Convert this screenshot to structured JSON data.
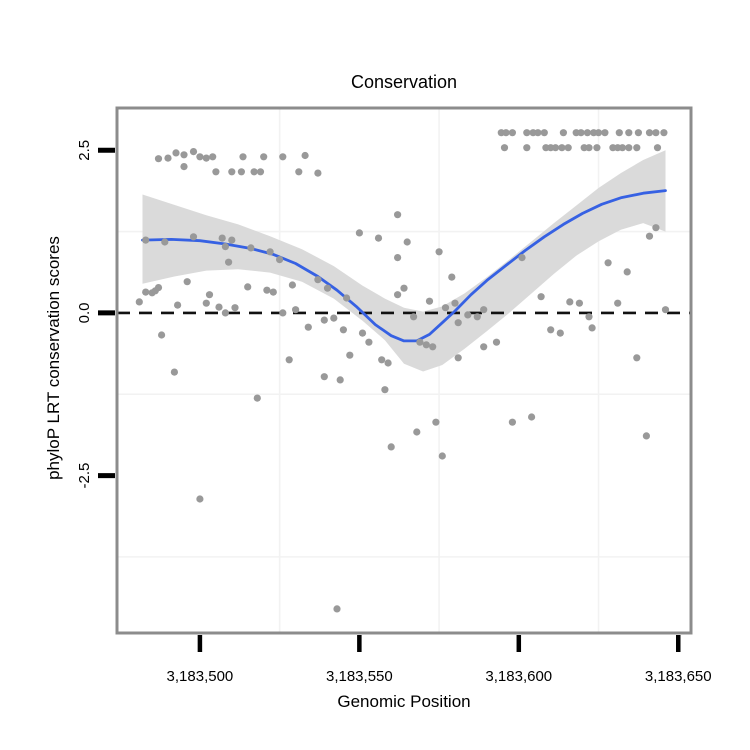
{
  "chart_data": {
    "type": "scatter",
    "title": "Conservation",
    "xlabel": "Genomic Position",
    "ylabel": "phyloP LRT conservation scores",
    "x_domain": [
      3183474,
      3183654
    ],
    "y_domain": [
      -4.92,
      3.15
    ],
    "x_ticks": [
      {
        "pos": 3183500,
        "label": "3,183,500"
      },
      {
        "pos": 3183550,
        "label": "3,183,550"
      },
      {
        "pos": 3183600,
        "label": "3,183,600"
      },
      {
        "pos": 3183650,
        "label": "3,183,650"
      }
    ],
    "y_ticks": [
      {
        "value": 2.5,
        "label": "2.5"
      },
      {
        "value": 0.0,
        "label": "0.0"
      },
      {
        "value": -2.5,
        "label": "-2.5"
      }
    ],
    "minor_gridlines": {
      "x": [
        3183525,
        3183575,
        3183625
      ],
      "y": [
        1.25,
        -1.25,
        -3.75
      ]
    },
    "zero_line": {
      "value": 0.0,
      "style": "dashed",
      "color": "#111111"
    },
    "colors": {
      "point": "#999999",
      "smooth_line": "#3661e3",
      "band": "#d8d8d8",
      "grid": "#f2f2f2",
      "border": "#8c8c8c",
      "tick": "#000000",
      "text": "#000000",
      "background": "#ffffff"
    },
    "points": [
      [
        3183487,
        2.37
      ],
      [
        3183490,
        2.38
      ],
      [
        3183492.5,
        2.46
      ],
      [
        3183495,
        2.43
      ],
      [
        3183498,
        2.48
      ],
      [
        3183500,
        2.4
      ],
      [
        3183502,
        2.38
      ],
      [
        3183504,
        2.4
      ],
      [
        3183513.5,
        2.4
      ],
      [
        3183520,
        2.4
      ],
      [
        3183526,
        2.4
      ],
      [
        3183533,
        2.42
      ],
      [
        3183495,
        2.25
      ],
      [
        3183505,
        2.17
      ],
      [
        3183510,
        2.17
      ],
      [
        3183513,
        2.17
      ],
      [
        3183517,
        2.17
      ],
      [
        3183519,
        2.17
      ],
      [
        3183531,
        2.17
      ],
      [
        3183537,
        2.15
      ],
      [
        3183594.5,
        2.77
      ],
      [
        3183596,
        2.77
      ],
      [
        3183598,
        2.77
      ],
      [
        3183602.5,
        2.77
      ],
      [
        3183604.5,
        2.77
      ],
      [
        3183606,
        2.77
      ],
      [
        3183608,
        2.77
      ],
      [
        3183614,
        2.77
      ],
      [
        3183618,
        2.77
      ],
      [
        3183619.5,
        2.77
      ],
      [
        3183621.5,
        2.77
      ],
      [
        3183623.5,
        2.77
      ],
      [
        3183625,
        2.77
      ],
      [
        3183627,
        2.77
      ],
      [
        3183631.5,
        2.77
      ],
      [
        3183634.5,
        2.77
      ],
      [
        3183637.5,
        2.77
      ],
      [
        3183641,
        2.77
      ],
      [
        3183643,
        2.77
      ],
      [
        3183645.5,
        2.77
      ],
      [
        3183595.5,
        2.54
      ],
      [
        3183602.5,
        2.54
      ],
      [
        3183608.5,
        2.54
      ],
      [
        3183610,
        2.54
      ],
      [
        3183611.5,
        2.54
      ],
      [
        3183613.5,
        2.54
      ],
      [
        3183615.5,
        2.54
      ],
      [
        3183620.5,
        2.54
      ],
      [
        3183622,
        2.54
      ],
      [
        3183624.5,
        2.54
      ],
      [
        3183629.5,
        2.54
      ],
      [
        3183631,
        2.54
      ],
      [
        3183632.5,
        2.54
      ],
      [
        3183634.5,
        2.54
      ],
      [
        3183637,
        2.54
      ],
      [
        3183643.5,
        2.54
      ],
      [
        3183483,
        1.12
      ],
      [
        3183489,
        1.09
      ],
      [
        3183498,
        1.17
      ],
      [
        3183507,
        1.15
      ],
      [
        3183510,
        1.12
      ],
      [
        3183508,
        1.02
      ],
      [
        3183516,
        1.0
      ],
      [
        3183509,
        0.78
      ],
      [
        3183522,
        0.94
      ],
      [
        3183525,
        0.82
      ],
      [
        3183529,
        0.43
      ],
      [
        3183521,
        0.35
      ],
      [
        3183523,
        0.32
      ],
      [
        3183537,
        0.51
      ],
      [
        3183540,
        0.38
      ],
      [
        3183546,
        0.23
      ],
      [
        3183550,
        1.23
      ],
      [
        3183556,
        1.15
      ],
      [
        3183562,
        1.51
      ],
      [
        3183565,
        1.09
      ],
      [
        3183562,
        0.85
      ],
      [
        3183562,
        0.28
      ],
      [
        3183564,
        0.38
      ],
      [
        3183496,
        0.48
      ],
      [
        3183515,
        0.4
      ],
      [
        3183483,
        0.32
      ],
      [
        3183485,
        0.31
      ],
      [
        3183486,
        0.34
      ],
      [
        3183487,
        0.39
      ],
      [
        3183481,
        0.17
      ],
      [
        3183493,
        0.12
      ],
      [
        3183502,
        0.15
      ],
      [
        3183503,
        0.28
      ],
      [
        3183506,
        0.09
      ],
      [
        3183508,
        0.0
      ],
      [
        3183511,
        0.08
      ],
      [
        3183526,
        0.0
      ],
      [
        3183530,
        0.05
      ],
      [
        3183534,
        -0.22
      ],
      [
        3183539,
        -0.11
      ],
      [
        3183542,
        -0.08
      ],
      [
        3183545,
        -0.26
      ],
      [
        3183488,
        -0.34
      ],
      [
        3183492,
        -0.91
      ],
      [
        3183518,
        -1.31
      ],
      [
        3183528,
        -0.72
      ],
      [
        3183539,
        -0.98
      ],
      [
        3183544,
        -1.03
      ],
      [
        3183547,
        -0.65
      ],
      [
        3183551,
        -0.31
      ],
      [
        3183553,
        -0.45
      ],
      [
        3183557,
        -0.72
      ],
      [
        3183559,
        -0.77
      ],
      [
        3183558,
        -1.18
      ],
      [
        3183560,
        -2.06
      ],
      [
        3183567,
        -0.06
      ],
      [
        3183572,
        0.18
      ],
      [
        3183577,
        0.08
      ],
      [
        3183580,
        0.15
      ],
      [
        3183581,
        -0.15
      ],
      [
        3183584,
        -0.03
      ],
      [
        3183587,
        -0.06
      ],
      [
        3183589,
        0.05
      ],
      [
        3183575,
        0.94
      ],
      [
        3183579,
        0.55
      ],
      [
        3183601,
        0.85
      ],
      [
        3183569,
        -0.45
      ],
      [
        3183571,
        -0.49
      ],
      [
        3183573,
        -0.52
      ],
      [
        3183581,
        -0.69
      ],
      [
        3183589,
        -0.52
      ],
      [
        3183593,
        -0.45
      ],
      [
        3183610,
        -0.26
      ],
      [
        3183613,
        -0.31
      ],
      [
        3183637,
        -0.69
      ],
      [
        3183607,
        0.25
      ],
      [
        3183616,
        0.17
      ],
      [
        3183619,
        0.15
      ],
      [
        3183622,
        -0.06
      ],
      [
        3183623,
        -0.23
      ],
      [
        3183631,
        0.15
      ],
      [
        3183646,
        0.05
      ],
      [
        3183628,
        0.77
      ],
      [
        3183634,
        0.63
      ],
      [
        3183641,
        1.18
      ],
      [
        3183643,
        1.31
      ],
      [
        3183568,
        -1.83
      ],
      [
        3183574,
        -1.68
      ],
      [
        3183576,
        -2.2
      ],
      [
        3183598,
        -1.68
      ],
      [
        3183604,
        -1.6
      ],
      [
        3183640,
        -1.89
      ],
      [
        3183500,
        -2.86
      ],
      [
        3183543,
        -4.55
      ]
    ],
    "smooth_line": {
      "name": "loess-fit",
      "points": [
        [
          3183482,
          1.12
        ],
        [
          3183491,
          1.13
        ],
        [
          3183500,
          1.11
        ],
        [
          3183508,
          1.06
        ],
        [
          3183516,
          0.99
        ],
        [
          3183523,
          0.9
        ],
        [
          3183530,
          0.76
        ],
        [
          3183537,
          0.56
        ],
        [
          3183543,
          0.35
        ],
        [
          3183549,
          0.1
        ],
        [
          3183555,
          -0.18
        ],
        [
          3183560,
          -0.35
        ],
        [
          3183564,
          -0.43
        ],
        [
          3183568,
          -0.43
        ],
        [
          3183572,
          -0.33
        ],
        [
          3183576,
          -0.15
        ],
        [
          3183580,
          0.03
        ],
        [
          3183585,
          0.28
        ],
        [
          3183590,
          0.5
        ],
        [
          3183596,
          0.73
        ],
        [
          3183602,
          0.96
        ],
        [
          3183608,
          1.17
        ],
        [
          3183614,
          1.36
        ],
        [
          3183620,
          1.53
        ],
        [
          3183626,
          1.67
        ],
        [
          3183632,
          1.77
        ],
        [
          3183639,
          1.84
        ],
        [
          3183646,
          1.88
        ]
      ]
    },
    "confidence_band": {
      "points": [
        [
          3183482,
          1.82,
          0.45
        ],
        [
          3183492,
          1.66,
          0.56
        ],
        [
          3183502,
          1.5,
          0.65
        ],
        [
          3183512,
          1.36,
          0.67
        ],
        [
          3183522,
          1.18,
          0.62
        ],
        [
          3183532,
          0.98,
          0.48
        ],
        [
          3183542,
          0.72,
          0.22
        ],
        [
          3183551,
          0.42,
          -0.12
        ],
        [
          3183558,
          0.22,
          -0.42
        ],
        [
          3183564,
          0.08,
          -0.78
        ],
        [
          3183570,
          0.02,
          -0.9
        ],
        [
          3183576,
          0.1,
          -0.8
        ],
        [
          3183583,
          0.3,
          -0.55
        ],
        [
          3183590,
          0.55,
          -0.28
        ],
        [
          3183597,
          0.82,
          0.0
        ],
        [
          3183604,
          1.1,
          0.3
        ],
        [
          3183611,
          1.38,
          0.6
        ],
        [
          3183618,
          1.65,
          0.88
        ],
        [
          3183625,
          1.92,
          1.1
        ],
        [
          3183632,
          2.15,
          1.28
        ],
        [
          3183639,
          2.35,
          1.38
        ],
        [
          3183646,
          2.5,
          1.25
        ]
      ]
    }
  }
}
